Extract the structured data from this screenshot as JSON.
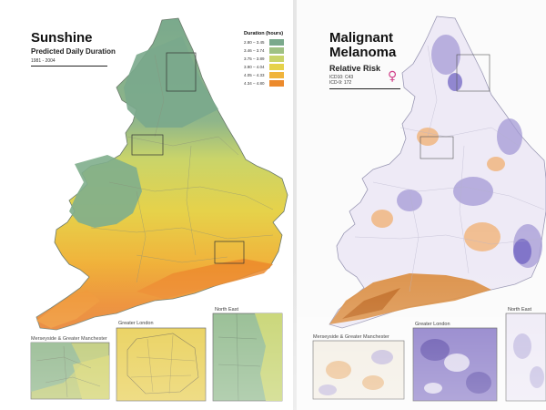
{
  "left_map": {
    "title": "Sunshine",
    "subtitle": "Predicted Daily Duration",
    "years": "1981 - 2004",
    "legend_title": "Duration (hours)",
    "legend": [
      {
        "label": "2.80 – 3.45",
        "color": "#7aa98c"
      },
      {
        "label": "3.46 – 3.74",
        "color": "#9fc184"
      },
      {
        "label": "3.75 – 3.89",
        "color": "#c9d46a"
      },
      {
        "label": "3.90 – 4.04",
        "color": "#e6d24a"
      },
      {
        "label": "4.05 – 4.33",
        "color": "#f0b43c"
      },
      {
        "label": "4.34 – 4.80",
        "color": "#ec8a2c"
      }
    ],
    "insets": [
      "Merseyside & Greater Manchester",
      "Greater London",
      "North East"
    ]
  },
  "right_map": {
    "title_line1": "Malignant",
    "title_line2": "Melanoma",
    "subtitle": "Relative Risk",
    "small_line1": "ICD10: C43",
    "small_line2": "ICD-9: 172",
    "sex_symbol": "♀",
    "insets": [
      "Merseyside & Greater Manchester",
      "Greater London",
      "North East"
    ]
  }
}
